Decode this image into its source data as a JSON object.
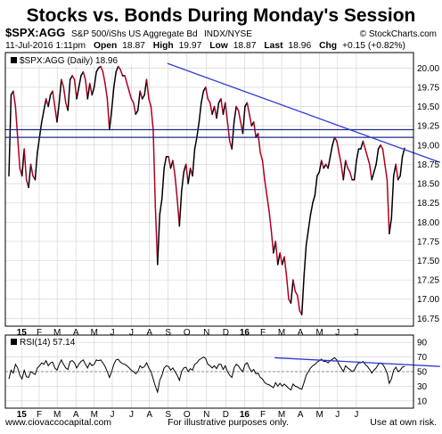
{
  "chart_data": [
    {
      "type": "line",
      "title": "Stocks vs. Bonds During Monday's Session",
      "header": {
        "symbol": "$SPX:AGG",
        "description": "S&P 500/iShs US Aggregate Bd",
        "exchange": "INDX/NYSE",
        "source": "© StockCharts.com",
        "date_label": "11-Jul-2016 1:11pm",
        "open_label": "Open",
        "open": "18.87",
        "high_label": "High",
        "high": "19.97",
        "low_label": "Low",
        "low": "18.87",
        "last_label": "Last",
        "last": "18.96",
        "chg_label": "Chg",
        "chg": "+0.15 (+0.82%)"
      },
      "legend": "$SPX:AGG (Daily) 18.96",
      "y_ticks": [
        "20.00",
        "19.75",
        "19.50",
        "19.25",
        "19.00",
        "18.75",
        "18.50",
        "18.25",
        "18.00",
        "17.75",
        "17.50",
        "17.25",
        "17.00",
        "16.75"
      ],
      "ylim": [
        16.65,
        20.2
      ],
      "x_ticks": [
        "15",
        "F",
        "M",
        "A",
        "M",
        "J",
        "J",
        "A",
        "S",
        "O",
        "N",
        "D",
        "16",
        "F",
        "M",
        "A",
        "M",
        "J",
        "J"
      ],
      "series": [
        {
          "values": [
            18.6,
            19.65,
            19.7,
            19.5,
            19.1,
            18.7,
            18.6,
            18.95,
            18.55,
            18.45,
            18.75,
            18.6,
            18.55,
            18.9,
            19.1,
            19.3,
            19.45,
            19.6,
            19.5,
            19.65,
            19.7,
            19.5,
            19.3,
            19.55,
            19.85,
            19.75,
            19.55,
            19.45,
            19.85,
            19.9,
            19.85,
            19.6,
            19.75,
            19.9,
            19.95,
            19.85,
            19.6,
            19.8,
            19.65,
            19.75,
            19.95,
            20.0,
            20.02,
            19.95,
            19.8,
            19.6,
            19.2,
            19.45,
            19.75,
            19.95,
            20.02,
            19.98,
            19.9,
            19.9,
            19.8,
            19.7,
            19.6,
            19.55,
            19.4,
            19.45,
            19.7,
            19.6,
            19.65,
            19.85,
            19.6,
            19.5,
            19.2,
            18.2,
            17.45,
            18.1,
            18.3,
            18.7,
            18.85,
            18.85,
            18.7,
            18.8,
            18.6,
            18.3,
            17.95,
            18.4,
            18.65,
            18.75,
            18.5,
            18.7,
            18.6,
            18.95,
            19.1,
            19.3,
            19.55,
            19.7,
            19.75,
            19.6,
            19.55,
            19.4,
            19.5,
            19.35,
            19.55,
            19.6,
            19.4,
            19.55,
            19.3,
            19.05,
            18.95,
            19.3,
            19.5,
            19.45,
            19.3,
            19.15,
            19.5,
            19.55,
            19.4,
            19.25,
            19.3,
            19.1,
            19.15,
            18.9,
            18.8,
            18.55,
            18.35,
            18.15,
            17.9,
            17.6,
            17.75,
            17.45,
            17.6,
            17.45,
            17.55,
            17.3,
            17.0,
            16.95,
            17.25,
            17.1,
            17.05,
            16.85,
            16.8,
            17.3,
            17.7,
            17.9,
            18.1,
            18.25,
            18.35,
            18.6,
            18.65,
            18.8,
            18.7,
            18.75,
            18.7,
            18.85,
            19.0,
            19.1,
            19.05,
            18.9,
            18.75,
            18.55,
            18.8,
            18.7,
            18.65,
            18.55,
            18.55,
            18.8,
            18.95,
            18.95,
            19.05,
            18.95,
            18.85,
            18.75,
            18.55,
            18.65,
            18.75,
            18.95,
            19.0,
            18.95,
            18.75,
            18.55,
            17.85,
            18.05,
            18.6,
            18.75,
            18.55,
            18.6,
            18.85,
            18.96
          ]
        }
      ],
      "horizontal_lines": [
        19.2,
        19.1
      ],
      "trendline": [
        [
          0.397,
          20.06
        ],
        [
          1.0,
          18.9
        ]
      ],
      "colors": {
        "up": "#000000",
        "down": "#b00020",
        "trendline": "#2f3bd6",
        "hline": "#1f2a8f",
        "grid": "#cfcfcf"
      }
    },
    {
      "type": "line",
      "label": "RSI(14) 57.14",
      "y_ticks": [
        "90",
        "70",
        "50",
        "30",
        "10"
      ],
      "ylim": [
        0,
        100
      ],
      "x_ticks": [
        "15",
        "F",
        "M",
        "A",
        "M",
        "J",
        "J",
        "A",
        "S",
        "O",
        "N",
        "D",
        "16",
        "F",
        "M",
        "A",
        "M",
        "J",
        "J"
      ],
      "series": [
        {
          "values": [
            40,
            52,
            48,
            60,
            55,
            45,
            40,
            52,
            43,
            42,
            50,
            48,
            46,
            55,
            58,
            62,
            60,
            65,
            58,
            62,
            63,
            55,
            52,
            60,
            66,
            60,
            55,
            53,
            64,
            65,
            62,
            55,
            60,
            64,
            66,
            60,
            55,
            62,
            58,
            60,
            66,
            65,
            66,
            62,
            57,
            50,
            42,
            50,
            60,
            66,
            67,
            63,
            61,
            60,
            58,
            55,
            52,
            50,
            47,
            50,
            58,
            55,
            57,
            62,
            55,
            50,
            40,
            30,
            22,
            38,
            45,
            55,
            58,
            57,
            52,
            55,
            50,
            45,
            38,
            50,
            55,
            56,
            50,
            54,
            52,
            60,
            62,
            66,
            68,
            70,
            68,
            60,
            58,
            55,
            58,
            54,
            60,
            60,
            53,
            58,
            50,
            45,
            42,
            55,
            60,
            58,
            53,
            50,
            60,
            62,
            55,
            50,
            53,
            47,
            48,
            42,
            40,
            35,
            33,
            32,
            30,
            28,
            35,
            30,
            34,
            30,
            33,
            30,
            27,
            25,
            33,
            30,
            29,
            27,
            26,
            35,
            45,
            50,
            55,
            58,
            60,
            63,
            65,
            67,
            64,
            64,
            62,
            65,
            67,
            69,
            66,
            60,
            55,
            50,
            58,
            55,
            53,
            50,
            52,
            58,
            62,
            62,
            64,
            60,
            57,
            53,
            48,
            52,
            55,
            60,
            62,
            60,
            55,
            48,
            34,
            40,
            52,
            56,
            50,
            52,
            56,
            57.14
          ]
        }
      ],
      "trendline": [
        [
          0.66,
          69
        ],
        [
          1.0,
          59
        ]
      ],
      "reference_line": 50
    }
  ],
  "footer": {
    "left": "www.ciovaccocapital.com",
    "center": "For illustrative purposes only.",
    "right": "Use at own risk."
  }
}
